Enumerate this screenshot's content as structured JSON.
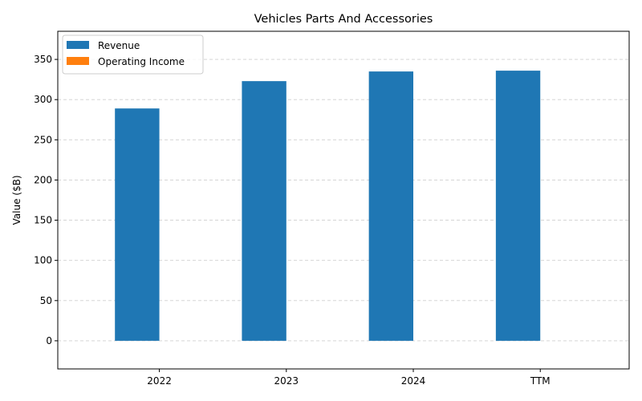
{
  "chart_data": {
    "type": "bar",
    "title": "Vehicles Parts And Accessories",
    "xlabel": "",
    "ylabel": "Value ($B)",
    "categories": [
      "2022",
      "2023",
      "2024",
      "TTM"
    ],
    "series": [
      {
        "name": "Revenue",
        "color": "#1f77b4",
        "values": [
          289,
          323,
          335,
          336
        ]
      },
      {
        "name": "Operating Income",
        "color": "#ff7f0e",
        "values": [
          0,
          0,
          0,
          0
        ]
      }
    ],
    "ylim": [
      -35,
      385
    ],
    "yticks": [
      0,
      50,
      100,
      150,
      200,
      250,
      300,
      350
    ],
    "grid": true,
    "legend_position": "top-left"
  }
}
